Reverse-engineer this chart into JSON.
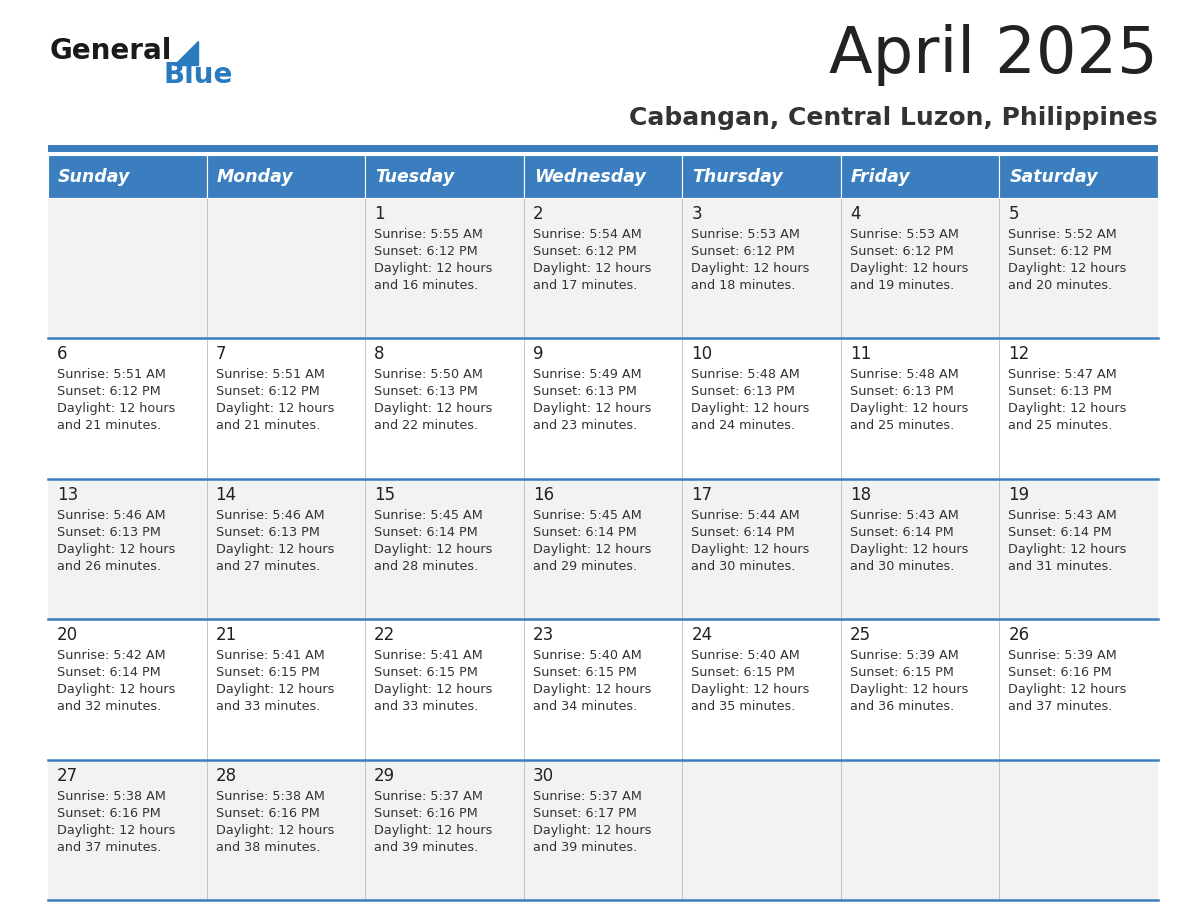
{
  "title": "April 2025",
  "subtitle": "Cabangan, Central Luzon, Philippines",
  "days_of_week": [
    "Sunday",
    "Monday",
    "Tuesday",
    "Wednesday",
    "Thursday",
    "Friday",
    "Saturday"
  ],
  "header_bg_color": "#3a7ebf",
  "header_text_color": "#ffffff",
  "row_bg_even": "#f2f2f2",
  "row_bg_odd": "#ffffff",
  "divider_color": "#3a7ebf",
  "text_color": "#222222",
  "cell_text_color": "#333333",
  "title_color": "#222222",
  "subtitle_color": "#333333",
  "logo_general_color": "#1a1a1a",
  "logo_blue_color": "#2a7abf",
  "calendar_data": [
    [
      null,
      null,
      {
        "day": 1,
        "sunrise": "5:55 AM",
        "sunset": "6:12 PM",
        "daylight_line1": "Daylight: 12 hours",
        "daylight_line2": "and 16 minutes."
      },
      {
        "day": 2,
        "sunrise": "5:54 AM",
        "sunset": "6:12 PM",
        "daylight_line1": "Daylight: 12 hours",
        "daylight_line2": "and 17 minutes."
      },
      {
        "day": 3,
        "sunrise": "5:53 AM",
        "sunset": "6:12 PM",
        "daylight_line1": "Daylight: 12 hours",
        "daylight_line2": "and 18 minutes."
      },
      {
        "day": 4,
        "sunrise": "5:53 AM",
        "sunset": "6:12 PM",
        "daylight_line1": "Daylight: 12 hours",
        "daylight_line2": "and 19 minutes."
      },
      {
        "day": 5,
        "sunrise": "5:52 AM",
        "sunset": "6:12 PM",
        "daylight_line1": "Daylight: 12 hours",
        "daylight_line2": "and 20 minutes."
      }
    ],
    [
      {
        "day": 6,
        "sunrise": "5:51 AM",
        "sunset": "6:12 PM",
        "daylight_line1": "Daylight: 12 hours",
        "daylight_line2": "and 21 minutes."
      },
      {
        "day": 7,
        "sunrise": "5:51 AM",
        "sunset": "6:12 PM",
        "daylight_line1": "Daylight: 12 hours",
        "daylight_line2": "and 21 minutes."
      },
      {
        "day": 8,
        "sunrise": "5:50 AM",
        "sunset": "6:13 PM",
        "daylight_line1": "Daylight: 12 hours",
        "daylight_line2": "and 22 minutes."
      },
      {
        "day": 9,
        "sunrise": "5:49 AM",
        "sunset": "6:13 PM",
        "daylight_line1": "Daylight: 12 hours",
        "daylight_line2": "and 23 minutes."
      },
      {
        "day": 10,
        "sunrise": "5:48 AM",
        "sunset": "6:13 PM",
        "daylight_line1": "Daylight: 12 hours",
        "daylight_line2": "and 24 minutes."
      },
      {
        "day": 11,
        "sunrise": "5:48 AM",
        "sunset": "6:13 PM",
        "daylight_line1": "Daylight: 12 hours",
        "daylight_line2": "and 25 minutes."
      },
      {
        "day": 12,
        "sunrise": "5:47 AM",
        "sunset": "6:13 PM",
        "daylight_line1": "Daylight: 12 hours",
        "daylight_line2": "and 25 minutes."
      }
    ],
    [
      {
        "day": 13,
        "sunrise": "5:46 AM",
        "sunset": "6:13 PM",
        "daylight_line1": "Daylight: 12 hours",
        "daylight_line2": "and 26 minutes."
      },
      {
        "day": 14,
        "sunrise": "5:46 AM",
        "sunset": "6:13 PM",
        "daylight_line1": "Daylight: 12 hours",
        "daylight_line2": "and 27 minutes."
      },
      {
        "day": 15,
        "sunrise": "5:45 AM",
        "sunset": "6:14 PM",
        "daylight_line1": "Daylight: 12 hours",
        "daylight_line2": "and 28 minutes."
      },
      {
        "day": 16,
        "sunrise": "5:45 AM",
        "sunset": "6:14 PM",
        "daylight_line1": "Daylight: 12 hours",
        "daylight_line2": "and 29 minutes."
      },
      {
        "day": 17,
        "sunrise": "5:44 AM",
        "sunset": "6:14 PM",
        "daylight_line1": "Daylight: 12 hours",
        "daylight_line2": "and 30 minutes."
      },
      {
        "day": 18,
        "sunrise": "5:43 AM",
        "sunset": "6:14 PM",
        "daylight_line1": "Daylight: 12 hours",
        "daylight_line2": "and 30 minutes."
      },
      {
        "day": 19,
        "sunrise": "5:43 AM",
        "sunset": "6:14 PM",
        "daylight_line1": "Daylight: 12 hours",
        "daylight_line2": "and 31 minutes."
      }
    ],
    [
      {
        "day": 20,
        "sunrise": "5:42 AM",
        "sunset": "6:14 PM",
        "daylight_line1": "Daylight: 12 hours",
        "daylight_line2": "and 32 minutes."
      },
      {
        "day": 21,
        "sunrise": "5:41 AM",
        "sunset": "6:15 PM",
        "daylight_line1": "Daylight: 12 hours",
        "daylight_line2": "and 33 minutes."
      },
      {
        "day": 22,
        "sunrise": "5:41 AM",
        "sunset": "6:15 PM",
        "daylight_line1": "Daylight: 12 hours",
        "daylight_line2": "and 33 minutes."
      },
      {
        "day": 23,
        "sunrise": "5:40 AM",
        "sunset": "6:15 PM",
        "daylight_line1": "Daylight: 12 hours",
        "daylight_line2": "and 34 minutes."
      },
      {
        "day": 24,
        "sunrise": "5:40 AM",
        "sunset": "6:15 PM",
        "daylight_line1": "Daylight: 12 hours",
        "daylight_line2": "and 35 minutes."
      },
      {
        "day": 25,
        "sunrise": "5:39 AM",
        "sunset": "6:15 PM",
        "daylight_line1": "Daylight: 12 hours",
        "daylight_line2": "and 36 minutes."
      },
      {
        "day": 26,
        "sunrise": "5:39 AM",
        "sunset": "6:16 PM",
        "daylight_line1": "Daylight: 12 hours",
        "daylight_line2": "and 37 minutes."
      }
    ],
    [
      {
        "day": 27,
        "sunrise": "5:38 AM",
        "sunset": "6:16 PM",
        "daylight_line1": "Daylight: 12 hours",
        "daylight_line2": "and 37 minutes."
      },
      {
        "day": 28,
        "sunrise": "5:38 AM",
        "sunset": "6:16 PM",
        "daylight_line1": "Daylight: 12 hours",
        "daylight_line2": "and 38 minutes."
      },
      {
        "day": 29,
        "sunrise": "5:37 AM",
        "sunset": "6:16 PM",
        "daylight_line1": "Daylight: 12 hours",
        "daylight_line2": "and 39 minutes."
      },
      {
        "day": 30,
        "sunrise": "5:37 AM",
        "sunset": "6:17 PM",
        "daylight_line1": "Daylight: 12 hours",
        "daylight_line2": "and 39 minutes."
      },
      null,
      null,
      null
    ]
  ]
}
